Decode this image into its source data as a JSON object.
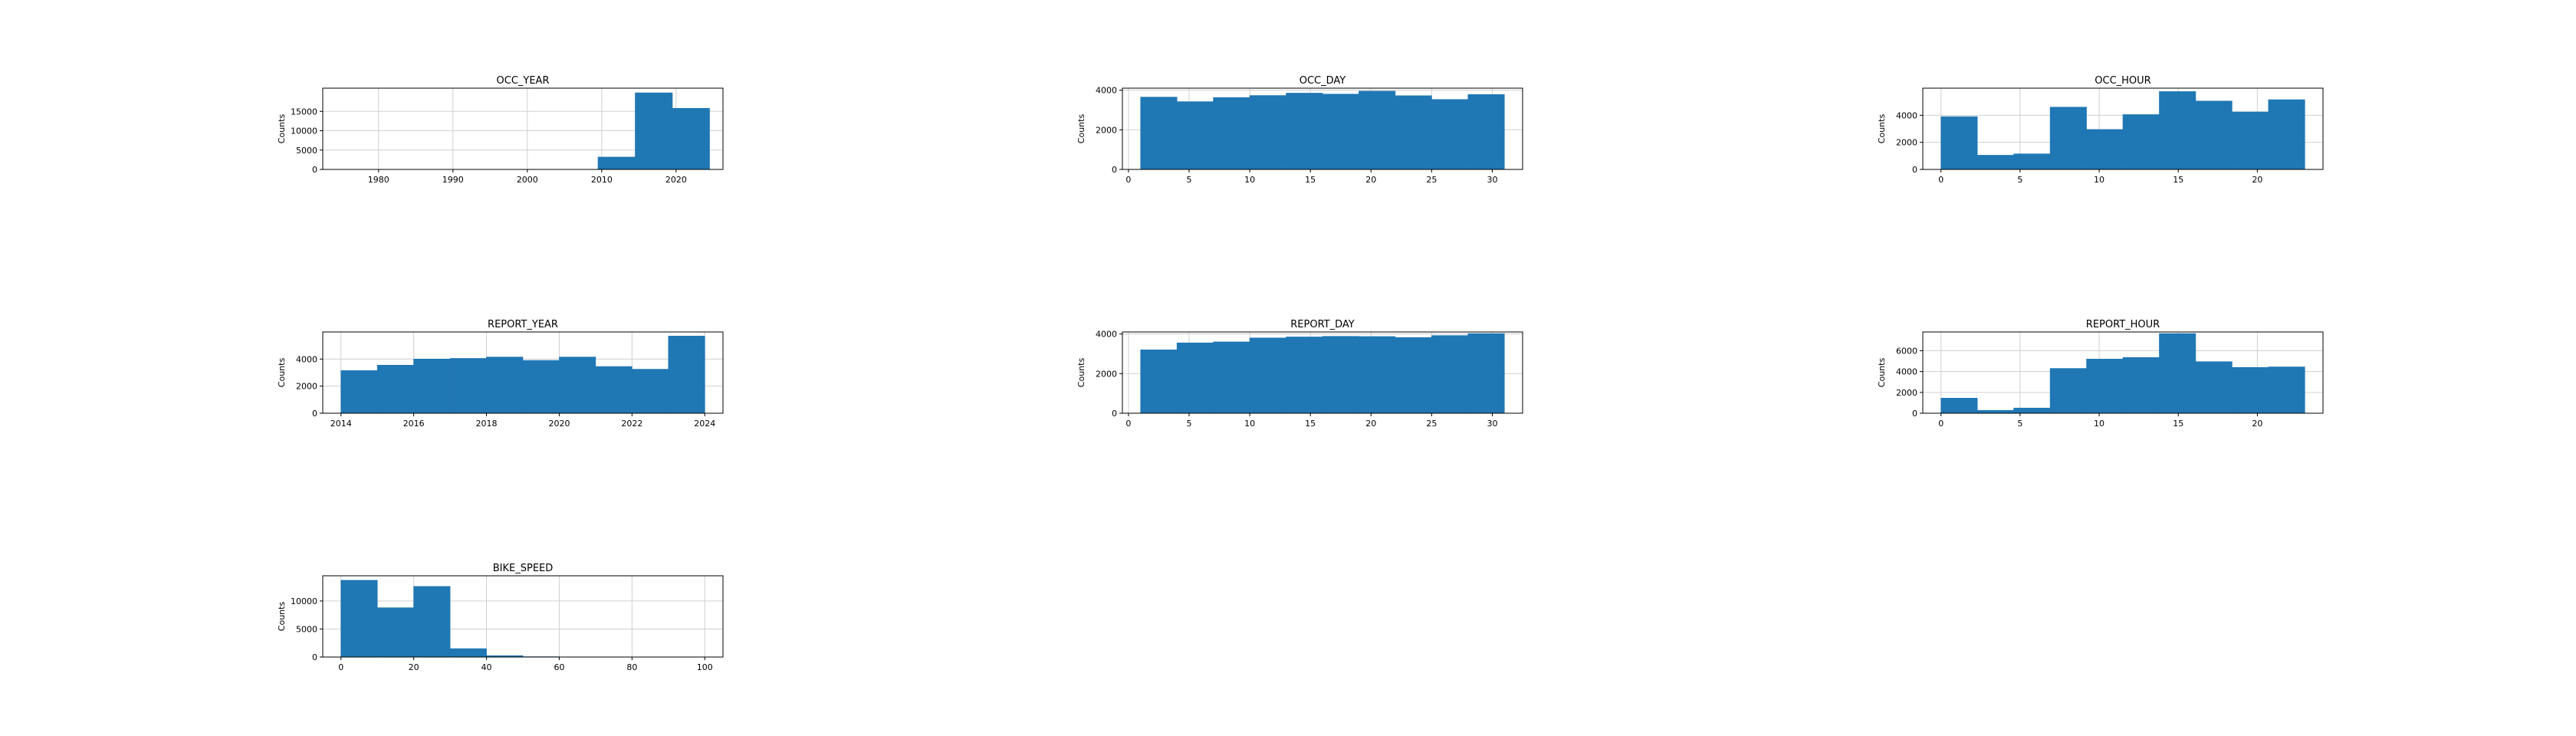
{
  "colors": {
    "bar_fill": "#1f77b4",
    "bar_edge": "#1f77b4",
    "grid": "#d0d0d0",
    "frame": "#000000",
    "background": "#ffffff"
  },
  "chart_data": [
    {
      "type": "bar",
      "title": "OCC_YEAR",
      "xlabel": "",
      "ylabel": "Counts",
      "grid": true,
      "xlim": [
        1972.5,
        2026.3
      ],
      "ylim": [
        0,
        21000
      ],
      "xticks": [
        1980,
        1990,
        2000,
        2010,
        2020
      ],
      "yticks": [
        0,
        5000,
        10000,
        15000
      ],
      "bins": [
        {
          "x0": 1974.5,
          "x1": 1979.5,
          "value": 0
        },
        {
          "x0": 1979.5,
          "x1": 1984.5,
          "value": 0
        },
        {
          "x0": 1984.5,
          "x1": 1989.5,
          "value": 0
        },
        {
          "x0": 1989.5,
          "x1": 1994.5,
          "value": 0
        },
        {
          "x0": 1994.5,
          "x1": 1999.5,
          "value": 0
        },
        {
          "x0": 1999.5,
          "x1": 2004.5,
          "value": 0
        },
        {
          "x0": 2004.5,
          "x1": 2009.5,
          "value": 20
        },
        {
          "x0": 2009.5,
          "x1": 2014.5,
          "value": 3200
        },
        {
          "x0": 2014.5,
          "x1": 2019.5,
          "value": 19800
        },
        {
          "x0": 2019.5,
          "x1": 2024.5,
          "value": 15800
        }
      ]
    },
    {
      "type": "bar",
      "title": "OCC_DAY",
      "xlabel": "",
      "ylabel": "Counts",
      "grid": true,
      "xlim": [
        -0.5,
        32.5
      ],
      "ylim": [
        0,
        4100
      ],
      "xticks": [
        0,
        5,
        10,
        15,
        20,
        25,
        30
      ],
      "yticks": [
        0,
        2000,
        4000
      ],
      "bins": [
        {
          "x0": 1,
          "x1": 4,
          "value": 3650
        },
        {
          "x0": 4,
          "x1": 7,
          "value": 3420
        },
        {
          "x0": 7,
          "x1": 10,
          "value": 3630
        },
        {
          "x0": 10,
          "x1": 13,
          "value": 3730
        },
        {
          "x0": 13,
          "x1": 16,
          "value": 3850
        },
        {
          "x0": 16,
          "x1": 19,
          "value": 3800
        },
        {
          "x0": 19,
          "x1": 22,
          "value": 3950
        },
        {
          "x0": 22,
          "x1": 25,
          "value": 3720
        },
        {
          "x0": 25,
          "x1": 28,
          "value": 3530
        },
        {
          "x0": 28,
          "x1": 31,
          "value": 3780
        }
      ]
    },
    {
      "type": "bar",
      "title": "OCC_HOUR",
      "xlabel": "",
      "ylabel": "Counts",
      "grid": true,
      "xlim": [
        -1.15,
        24.15
      ],
      "ylim": [
        0,
        6000
      ],
      "xticks": [
        0,
        5,
        10,
        15,
        20
      ],
      "yticks": [
        0,
        2000,
        4000
      ],
      "bins": [
        {
          "x0": 0,
          "x1": 2.3,
          "value": 3900
        },
        {
          "x0": 2.3,
          "x1": 4.6,
          "value": 1050
        },
        {
          "x0": 4.6,
          "x1": 6.9,
          "value": 1150
        },
        {
          "x0": 6.9,
          "x1": 9.2,
          "value": 4600
        },
        {
          "x0": 9.2,
          "x1": 11.5,
          "value": 2950
        },
        {
          "x0": 11.5,
          "x1": 13.8,
          "value": 4050
        },
        {
          "x0": 13.8,
          "x1": 16.1,
          "value": 5750
        },
        {
          "x0": 16.1,
          "x1": 18.4,
          "value": 5050
        },
        {
          "x0": 18.4,
          "x1": 20.7,
          "value": 4250
        },
        {
          "x0": 20.7,
          "x1": 23,
          "value": 5150
        }
      ]
    },
    {
      "type": "bar",
      "title": "REPORT_YEAR",
      "xlabel": "",
      "ylabel": "Counts",
      "grid": true,
      "xlim": [
        13.5,
        24.5
      ],
      "ylim": [
        0,
        6000
      ],
      "xticks": [
        14,
        16,
        18,
        20,
        22,
        24
      ],
      "xtick_labels": [
        "2014",
        "2016",
        "2018",
        "2020",
        "2022",
        "2024"
      ],
      "yticks": [
        0,
        2000,
        4000
      ],
      "bins": [
        {
          "x0": 14,
          "x1": 15,
          "value": 3150
        },
        {
          "x0": 15,
          "x1": 16,
          "value": 3550
        },
        {
          "x0": 16,
          "x1": 17,
          "value": 4000
        },
        {
          "x0": 17,
          "x1": 18,
          "value": 4050
        },
        {
          "x0": 18,
          "x1": 19,
          "value": 4150
        },
        {
          "x0": 19,
          "x1": 20,
          "value": 3900
        },
        {
          "x0": 20,
          "x1": 21,
          "value": 4150
        },
        {
          "x0": 21,
          "x1": 22,
          "value": 3450
        },
        {
          "x0": 22,
          "x1": 23,
          "value": 3250
        },
        {
          "x0": 23,
          "x1": 24,
          "value": 5700
        }
      ]
    },
    {
      "type": "bar",
      "title": "REPORT_DAY",
      "xlabel": "",
      "ylabel": "Counts",
      "grid": true,
      "xlim": [
        -0.5,
        32.5
      ],
      "ylim": [
        0,
        4100
      ],
      "xticks": [
        0,
        5,
        10,
        15,
        20,
        25,
        30
      ],
      "yticks": [
        0,
        2000,
        4000
      ],
      "bins": [
        {
          "x0": 1,
          "x1": 4,
          "value": 3200
        },
        {
          "x0": 4,
          "x1": 7,
          "value": 3550
        },
        {
          "x0": 7,
          "x1": 10,
          "value": 3600
        },
        {
          "x0": 10,
          "x1": 13,
          "value": 3800
        },
        {
          "x0": 13,
          "x1": 16,
          "value": 3850
        },
        {
          "x0": 16,
          "x1": 19,
          "value": 3880
        },
        {
          "x0": 19,
          "x1": 22,
          "value": 3870
        },
        {
          "x0": 22,
          "x1": 25,
          "value": 3820
        },
        {
          "x0": 25,
          "x1": 28,
          "value": 3920
        },
        {
          "x0": 28,
          "x1": 31,
          "value": 4020
        }
      ]
    },
    {
      "type": "bar",
      "title": "REPORT_HOUR",
      "xlabel": "",
      "ylabel": "Counts",
      "grid": true,
      "xlim": [
        -1.15,
        24.15
      ],
      "ylim": [
        0,
        7800
      ],
      "xticks": [
        0,
        5,
        10,
        15,
        20
      ],
      "yticks": [
        0,
        2000,
        4000,
        6000
      ],
      "bins": [
        {
          "x0": 0,
          "x1": 2.3,
          "value": 1450
        },
        {
          "x0": 2.3,
          "x1": 4.6,
          "value": 280
        },
        {
          "x0": 4.6,
          "x1": 6.9,
          "value": 500
        },
        {
          "x0": 6.9,
          "x1": 9.2,
          "value": 4300
        },
        {
          "x0": 9.2,
          "x1": 11.5,
          "value": 5200
        },
        {
          "x0": 11.5,
          "x1": 13.8,
          "value": 5350
        },
        {
          "x0": 13.8,
          "x1": 16.1,
          "value": 7650
        },
        {
          "x0": 16.1,
          "x1": 18.4,
          "value": 4950
        },
        {
          "x0": 18.4,
          "x1": 20.7,
          "value": 4400
        },
        {
          "x0": 20.7,
          "x1": 23,
          "value": 4450
        }
      ]
    },
    {
      "type": "bar",
      "title": "BIKE_SPEED",
      "xlabel": "",
      "ylabel": "Counts",
      "grid": true,
      "xlim": [
        -5,
        105
      ],
      "ylim": [
        0,
        14500
      ],
      "xticks": [
        0,
        20,
        40,
        60,
        80,
        100
      ],
      "yticks": [
        0,
        5000,
        10000
      ],
      "bins": [
        {
          "x0": 0,
          "x1": 10,
          "value": 13700
        },
        {
          "x0": 10,
          "x1": 20,
          "value": 8800
        },
        {
          "x0": 20,
          "x1": 30,
          "value": 12600
        },
        {
          "x0": 30,
          "x1": 40,
          "value": 1500
        },
        {
          "x0": 40,
          "x1": 50,
          "value": 250
        },
        {
          "x0": 50,
          "x1": 60,
          "value": 60
        },
        {
          "x0": 60,
          "x1": 70,
          "value": 15
        },
        {
          "x0": 70,
          "x1": 80,
          "value": 5
        },
        {
          "x0": 80,
          "x1": 90,
          "value": 2
        },
        {
          "x0": 90,
          "x1": 100,
          "value": 1
        }
      ]
    }
  ]
}
